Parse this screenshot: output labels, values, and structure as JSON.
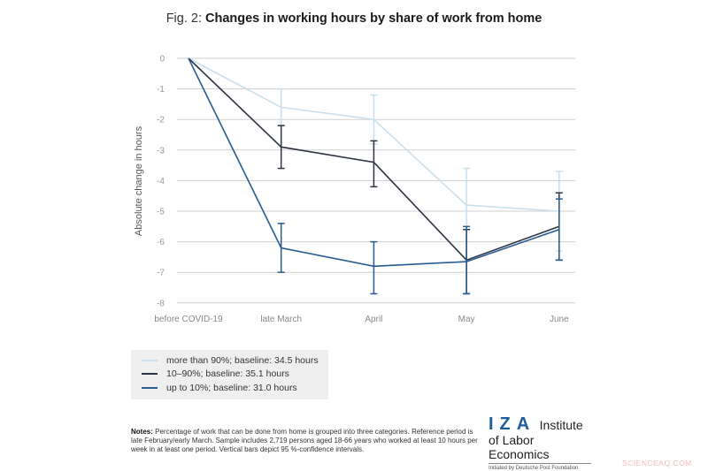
{
  "figure": {
    "fig_label": "Fig. 2: ",
    "title": "Changes in working hours by share of work from home"
  },
  "legend": [
    {
      "label": "more than 90%; baseline: 34.5 hours",
      "color": "#c9dfee"
    },
    {
      "label": "10–90%; baseline: 35.1 hours",
      "color": "#2d3446"
    },
    {
      "label": "up to 10%; baseline: 31.0 hours",
      "color": "#275b91"
    }
  ],
  "notes": {
    "label": "Notes:",
    "text": " Percentage of work that can be done from home is grouped into three categories. Reference period is late February/early March. Sample includes 2,719 persons aged 18-66 years who worked at least 10 hours per week in at least one period. Vertical bars depict 95 %-confidence intervals."
  },
  "logo": {
    "mark": "IZA",
    "line1": "Institute",
    "line2": "of Labor Economics",
    "line3": "Initiated by Deutsche Post Foundation"
  },
  "watermark": "SCIENCEAQ.COM",
  "chart_data": {
    "type": "line",
    "title": "Fig. 2: Changes in working hours by share of work from home",
    "xlabel": "",
    "ylabel": "Absolute change in hours",
    "categories": [
      "before COVID-19",
      "late March",
      "April",
      "May",
      "June"
    ],
    "yticks": [
      0,
      -1,
      -2,
      -3,
      -4,
      -5,
      -6,
      -7,
      -8
    ],
    "ylim": [
      -8,
      0
    ],
    "grid": true,
    "legend_position": "bottom-left",
    "series": [
      {
        "name": "more than 90%; baseline: 34.5 hours",
        "color": "#c9dfee",
        "values": [
          0,
          -1.6,
          -2.0,
          -4.8,
          -5.0
        ],
        "ci_low": [
          null,
          -2.2,
          -2.8,
          -6.0,
          -6.3
        ],
        "ci_high": [
          null,
          -1.0,
          -1.2,
          -3.6,
          -3.7
        ]
      },
      {
        "name": "10–90%; baseline: 35.1 hours",
        "color": "#2d3446",
        "values": [
          0,
          -2.9,
          -3.4,
          -6.6,
          -5.5
        ],
        "ci_low": [
          null,
          -3.6,
          -4.2,
          -7.7,
          -6.6
        ],
        "ci_high": [
          null,
          -2.2,
          -2.7,
          -5.6,
          -4.4
        ]
      },
      {
        "name": "up to 10%; baseline: 31.0 hours",
        "color": "#275b91",
        "values": [
          0,
          -6.2,
          -6.8,
          -6.65,
          -5.6
        ],
        "ci_low": [
          null,
          -7.0,
          -7.7,
          -7.7,
          -6.6
        ],
        "ci_high": [
          null,
          -5.4,
          -6.0,
          -5.5,
          -4.6
        ]
      }
    ]
  }
}
